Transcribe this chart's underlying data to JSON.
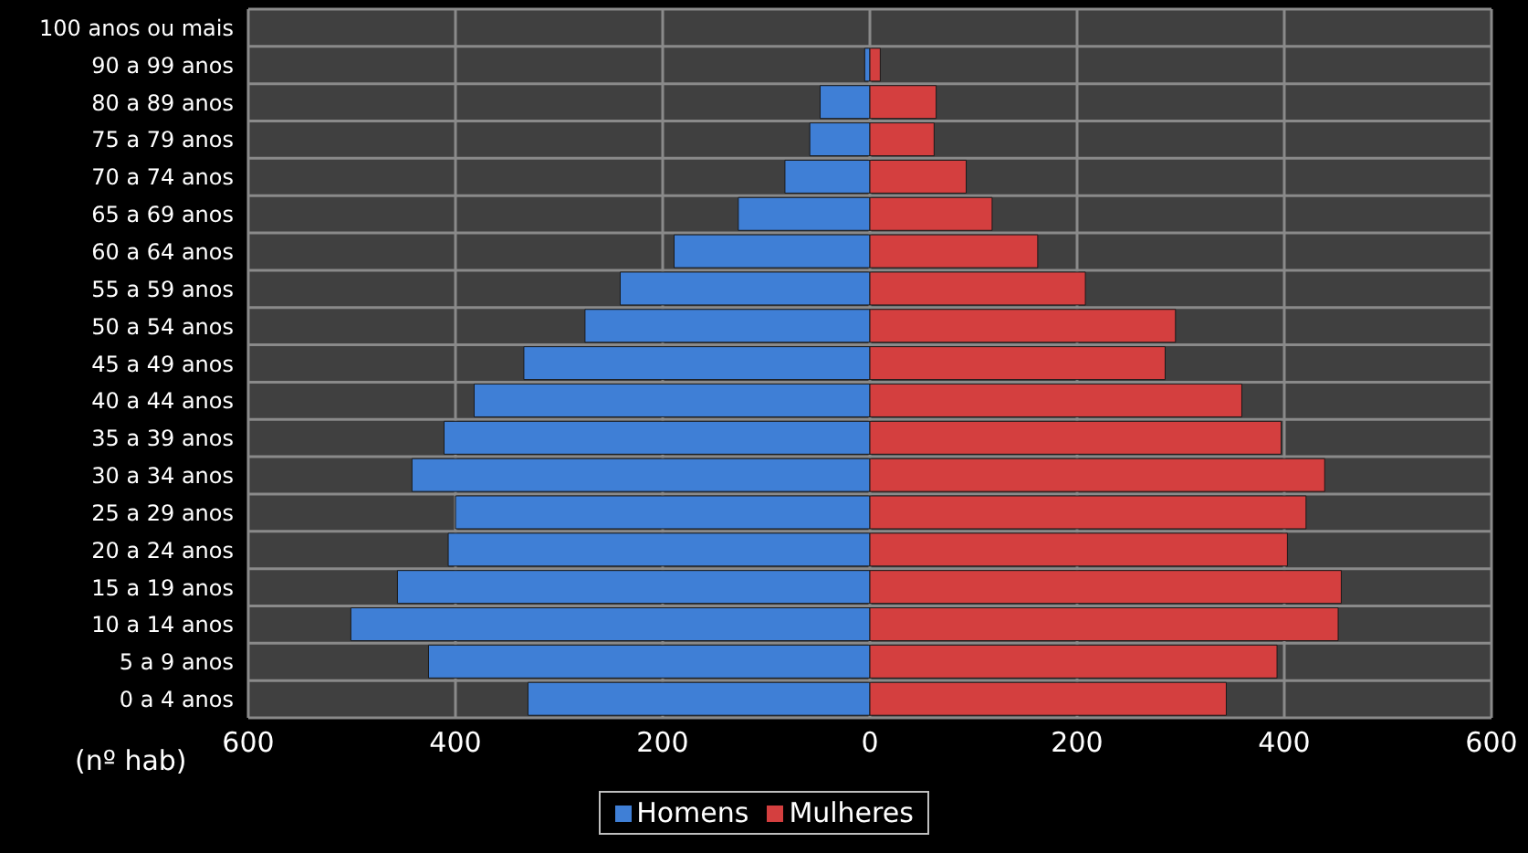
{
  "chart_data": {
    "type": "bar",
    "orientation": "horizontal",
    "xlabel": "(nº hab)",
    "categories": [
      "100 anos ou mais",
      "90 a 99 anos",
      "80 a 89 anos",
      "75 a 79 anos",
      "70 a 74 anos",
      "65 a 69 anos",
      "60 a 64 anos",
      "55 a 59 anos",
      "50 a 54 anos",
      "45 a 49 anos",
      "40 a 44 anos",
      "35 a 39 anos",
      "30 a 34 anos",
      "25 a 29 anos",
      "20 a 24 anos",
      "15 a 19 anos",
      "10 a 14 anos",
      "5 a 9 anos",
      "0 a 4 anos"
    ],
    "series": [
      {
        "name": "Homens",
        "color": "#3f7fd6",
        "values": [
          0,
          -5,
          -48,
          -58,
          -82,
          -127,
          -189,
          -241,
          -275,
          -334,
          -382,
          -411,
          -442,
          -400,
          -407,
          -456,
          -501,
          -426,
          -330
        ]
      },
      {
        "name": "Mulheres",
        "color": "#d43f3f",
        "values": [
          0,
          10,
          64,
          62,
          93,
          118,
          162,
          208,
          295,
          285,
          359,
          397,
          439,
          421,
          403,
          455,
          452,
          393,
          344
        ]
      }
    ],
    "xlim": [
      -600,
      600
    ],
    "xticks": [
      {
        "value": -600,
        "label": "600"
      },
      {
        "value": -400,
        "label": "400"
      },
      {
        "value": -200,
        "label": "200"
      },
      0,
      200,
      400,
      600
    ],
    "grid": true,
    "legend": "bottom",
    "stacked": true
  }
}
